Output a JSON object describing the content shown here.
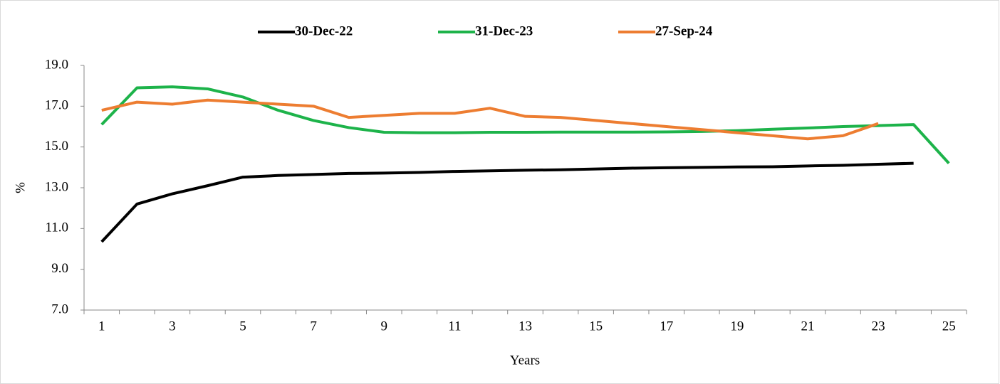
{
  "chart_data": {
    "type": "line",
    "x_label": "Years",
    "y_label": "%",
    "categories": [
      "1",
      null,
      "3",
      null,
      "5",
      null,
      "7",
      null,
      "9",
      null,
      "11",
      null,
      "13",
      null,
      "15",
      null,
      "17",
      null,
      "19",
      null,
      "21",
      null,
      "23",
      null,
      "25"
    ],
    "series": [
      {
        "name": "30-Dec-22",
        "color": "#000000",
        "values": [
          10.35,
          12.2,
          12.7,
          13.1,
          13.52,
          13.6,
          13.65,
          13.7,
          13.72,
          13.75,
          13.8,
          13.83,
          13.86,
          13.88,
          13.92,
          13.96,
          13.98,
          14.0,
          14.02,
          14.03,
          14.07,
          14.1,
          14.15,
          14.2,
          null
        ]
      },
      {
        "name": "31-Dec-23",
        "color": "#1db34a",
        "values": [
          16.1,
          17.9,
          17.95,
          17.85,
          17.45,
          16.8,
          16.3,
          15.95,
          15.72,
          15.7,
          15.7,
          15.72,
          15.72,
          15.73,
          15.73,
          15.73,
          15.74,
          15.76,
          15.8,
          15.87,
          15.93,
          16.0,
          16.05,
          16.1,
          14.2
        ]
      },
      {
        "name": "27-Sep-24",
        "color": "#ed7d31",
        "values": [
          16.8,
          17.2,
          17.1,
          17.3,
          17.2,
          17.1,
          17.0,
          16.45,
          16.55,
          16.65,
          16.65,
          16.9,
          16.5,
          16.45,
          16.3,
          16.15,
          16.0,
          15.85,
          15.7,
          15.55,
          15.4,
          15.55,
          16.15,
          null,
          null
        ]
      }
    ],
    "ylim": [
      7,
      19
    ],
    "yticks": [
      {
        "value": 7,
        "label": "7.0"
      },
      {
        "value": 9,
        "label": "9.0"
      },
      {
        "value": 11,
        "label": "11.0"
      },
      {
        "value": 13,
        "label": "13.0"
      },
      {
        "value": 15,
        "label": "15.0"
      },
      {
        "value": 17,
        "label": "17.0"
      },
      {
        "value": 19,
        "label": "19.0"
      }
    ],
    "grid": false,
    "legend": "top"
  }
}
